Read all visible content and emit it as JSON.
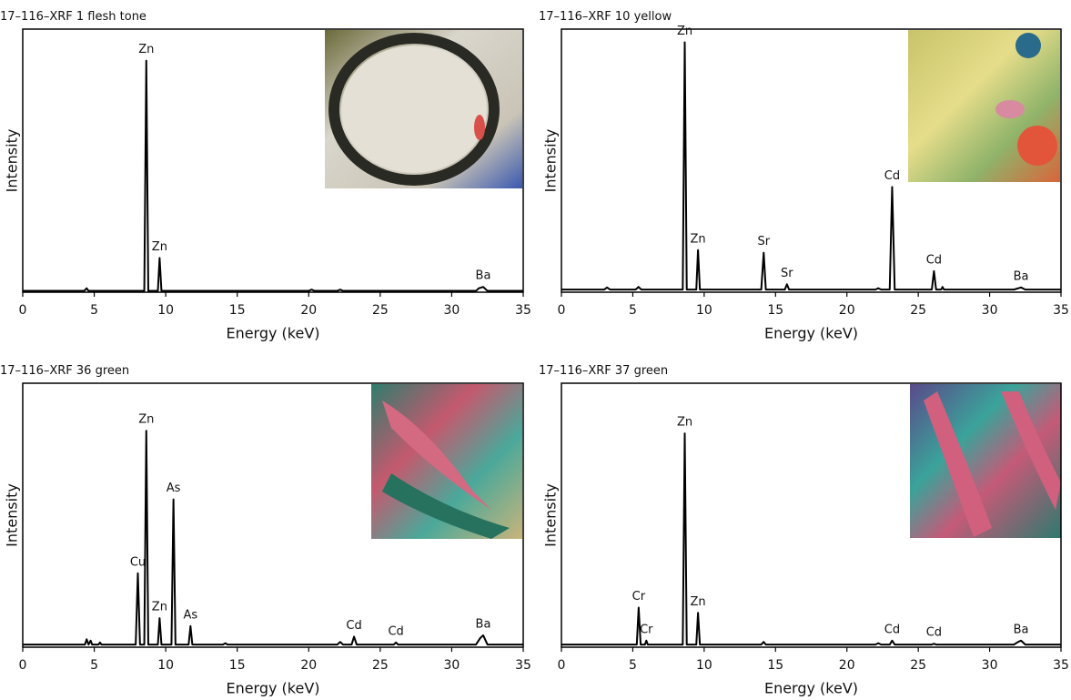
{
  "chart_data": [
    {
      "type": "line",
      "title": "17–116–XRF 1 flesh tone",
      "xlabel": "Energy (keV)",
      "ylabel": "Intensity",
      "xlim": [
        0,
        35
      ],
      "xticks": [
        0,
        5,
        10,
        15,
        20,
        25,
        30,
        35
      ],
      "ylim": [
        0,
        100
      ],
      "color": "#000000",
      "x": [
        0,
        4.3,
        4.47,
        4.6,
        4.8,
        8.5,
        8.64,
        8.78,
        9.45,
        9.57,
        9.7,
        20,
        20.2,
        20.4,
        22.0,
        22.2,
        22.4,
        31.7,
        31.9,
        32.2,
        32.5,
        35
      ],
      "values": [
        0.5,
        0.5,
        1.5,
        0.5,
        0.5,
        0.5,
        88,
        0.5,
        0.5,
        13,
        0.5,
        0.5,
        1,
        0.5,
        0.5,
        1,
        0.5,
        0.5,
        1.5,
        2,
        0.5,
        0.5
      ],
      "annotations": [
        {
          "text": "Zn",
          "x": 8.64
        },
        {
          "text": "Zn",
          "x": 9.57
        },
        {
          "text": "Ba",
          "x": 32.2
        }
      ]
    },
    {
      "type": "line",
      "title": "17–116–XRF 10 yellow",
      "xlabel": "Energy (keV)",
      "ylabel": "Intensity",
      "xlim": [
        0,
        35
      ],
      "xticks": [
        0,
        5,
        10,
        15,
        20,
        25,
        30,
        35
      ],
      "ylim": [
        0,
        100
      ],
      "color": "#000000",
      "x": [
        0,
        3.0,
        3.2,
        3.4,
        5.2,
        5.4,
        5.6,
        8.5,
        8.64,
        8.78,
        9.45,
        9.57,
        9.7,
        14.0,
        14.17,
        14.32,
        15.65,
        15.8,
        15.95,
        22.0,
        22.2,
        22.4,
        23.0,
        23.17,
        23.35,
        25.95,
        26.1,
        26.25,
        26.6,
        26.7,
        26.8,
        31.7,
        32.2,
        32.5,
        35
      ],
      "values": [
        1,
        1,
        1.8,
        1,
        1,
        2,
        1,
        1,
        95,
        1,
        1,
        16,
        1,
        1,
        15,
        1,
        1,
        3,
        1,
        1,
        1.5,
        1,
        1,
        40,
        1,
        1,
        8,
        1,
        1,
        2,
        1,
        1,
        1.8,
        1,
        1
      ],
      "annotations": [
        {
          "text": "Zn",
          "x": 8.64
        },
        {
          "text": "Zn",
          "x": 9.57
        },
        {
          "text": "Sr",
          "x": 14.17
        },
        {
          "text": "Sr",
          "x": 15.8
        },
        {
          "text": "Cd",
          "x": 23.17
        },
        {
          "text": "Cd",
          "x": 26.1
        },
        {
          "text": "Ba",
          "x": 32.2
        }
      ]
    },
    {
      "type": "line",
      "title": "17–116–XRF 36 green",
      "xlabel": "Energy (keV)",
      "ylabel": "Intensity",
      "xlim": [
        0,
        35
      ],
      "xticks": [
        0,
        5,
        10,
        15,
        20,
        25,
        30,
        35
      ],
      "ylim": [
        0,
        100
      ],
      "color": "#000000",
      "x": [
        0,
        4.35,
        4.47,
        4.6,
        4.75,
        4.85,
        5.3,
        5.4,
        5.5,
        7.9,
        8.05,
        8.2,
        8.5,
        8.64,
        8.78,
        9.45,
        9.57,
        9.7,
        10.4,
        10.54,
        10.68,
        11.6,
        11.73,
        11.86,
        14.0,
        14.17,
        14.32,
        20,
        22.0,
        22.2,
        22.4,
        23.0,
        23.17,
        23.35,
        25.95,
        26.1,
        26.25,
        31.7,
        32.0,
        32.2,
        32.5,
        35
      ],
      "values": [
        1,
        1,
        3,
        1,
        2.5,
        1,
        1,
        1.8,
        1,
        1,
        28,
        1,
        1,
        82,
        1,
        1,
        11,
        1,
        1,
        56,
        1,
        1,
        8,
        1,
        1,
        1.5,
        1,
        1,
        1,
        2,
        1,
        1,
        4,
        1,
        1,
        1.8,
        1,
        1,
        3.5,
        4.5,
        1,
        1
      ],
      "annotations": [
        {
          "text": "Cu",
          "x": 8.05
        },
        {
          "text": "Zn",
          "x": 8.64
        },
        {
          "text": "Zn",
          "x": 9.57
        },
        {
          "text": "As",
          "x": 10.54
        },
        {
          "text": "As",
          "x": 11.73
        },
        {
          "text": "Cd",
          "x": 23.17
        },
        {
          "text": "Cd",
          "x": 26.1
        },
        {
          "text": "Ba",
          "x": 32.2
        }
      ]
    },
    {
      "type": "line",
      "title": "17–116–XRF 37 green",
      "xlabel": "Energy (keV)",
      "ylabel": "Intensity",
      "xlim": [
        0,
        35
      ],
      "xticks": [
        0,
        5,
        10,
        15,
        20,
        25,
        30,
        35
      ],
      "ylim": [
        0,
        100
      ],
      "color": "#000000",
      "x": [
        0,
        5.28,
        5.41,
        5.55,
        5.85,
        5.95,
        6.05,
        8.5,
        8.64,
        8.78,
        9.45,
        9.57,
        9.7,
        14.0,
        14.17,
        14.32,
        22.0,
        22.2,
        22.4,
        23.0,
        23.17,
        23.35,
        25.95,
        26.1,
        26.25,
        31.7,
        32.0,
        32.2,
        32.5,
        35
      ],
      "values": [
        1,
        1,
        15,
        1,
        1,
        2.5,
        1,
        1,
        81,
        1,
        1,
        13,
        1,
        1,
        2,
        1,
        1,
        1.5,
        1,
        1,
        2.5,
        1,
        1,
        1.3,
        1,
        1,
        2,
        2.5,
        1,
        1
      ],
      "annotations": [
        {
          "text": "Cr",
          "x": 5.41
        },
        {
          "text": "Cr",
          "x": 5.95
        },
        {
          "text": "Zn",
          "x": 8.64
        },
        {
          "text": "Zn",
          "x": 9.57
        },
        {
          "text": "Cd",
          "x": 23.17
        },
        {
          "text": "Cd",
          "x": 26.1
        },
        {
          "text": "Ba",
          "x": 32.2
        }
      ]
    }
  ]
}
